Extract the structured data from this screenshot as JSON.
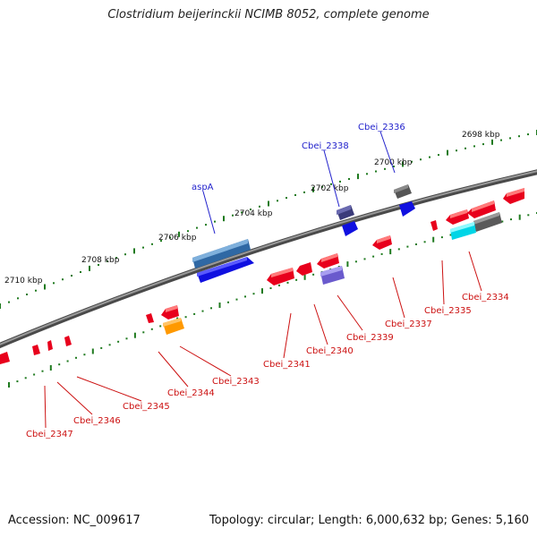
{
  "title": "Clostridium beijerinckii NCIMB 8052, complete genome",
  "accession": "Accession: NC_009617",
  "topology": "Topology: circular; Length: 6,000,632 bp; Genes: 5,160",
  "ruler_labels": [
    "2698 kbp",
    "2700 kbp",
    "2702 kbp",
    "2704 kbp",
    "2706 kbp",
    "2708 kbp",
    "2710 kbp"
  ],
  "genes_top": [
    "Cbei_2336",
    "Cbei_2338",
    "aspA"
  ],
  "genes_bottom": [
    "Cbei_2334",
    "Cbei_2335",
    "Cbei_2337",
    "Cbei_2339",
    "Cbei_2340",
    "Cbei_2341",
    "Cbei_2343",
    "Cbei_2344",
    "Cbei_2345",
    "Cbei_2346",
    "Cbei_2347"
  ],
  "colors": {
    "backbone": "#7a7a7a",
    "tick": "#1f7a1f",
    "forward_label": "#2222cc",
    "reverse_label": "#cc1111",
    "red_gene": "#e8001c",
    "blue_gene": "#1010e0",
    "steel_gene": "#3f78b4",
    "gray_gene": "#6b6b6b",
    "purple_gene": "#6a5acd",
    "cyan_gene": "#00e5f0",
    "orange_gene": "#ff9900"
  }
}
